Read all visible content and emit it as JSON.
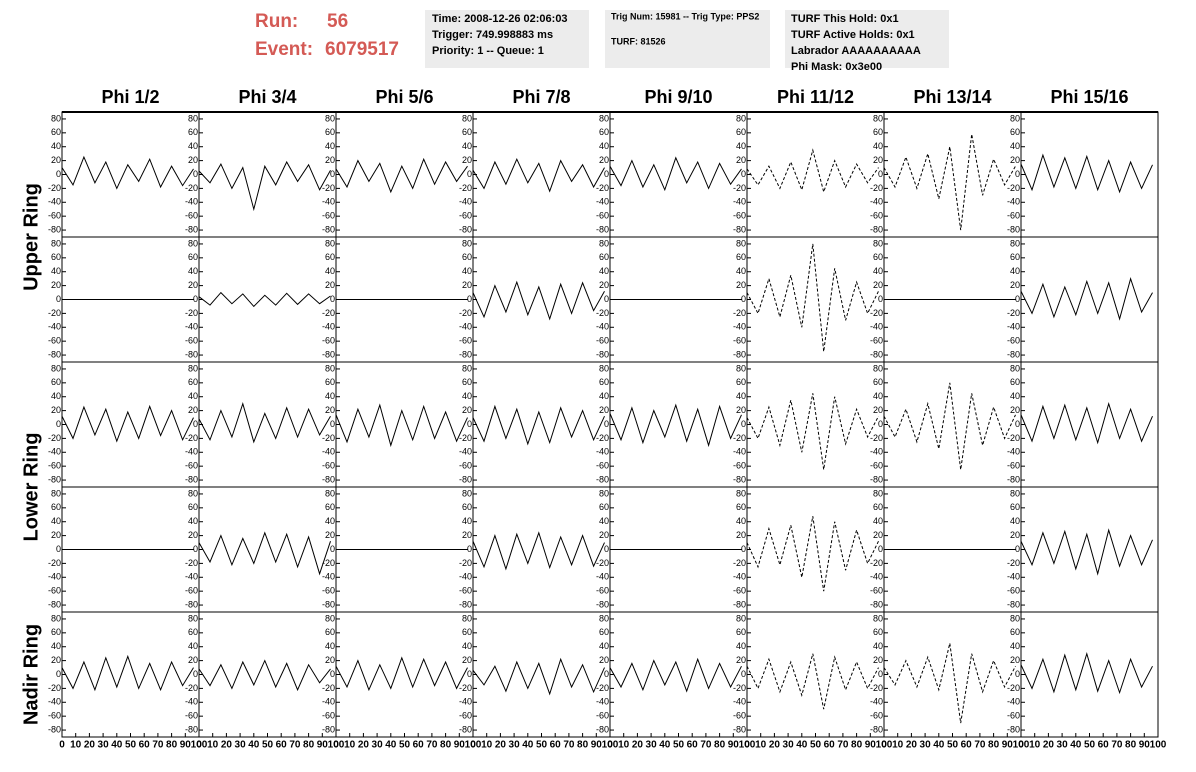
{
  "header": {
    "run_label": "Run:",
    "run": "56",
    "event_label": "Event:",
    "event": "6079517"
  },
  "info_boxes": [
    [
      "Time: 2008-12-26 02:06:03",
      "Trigger: 749.998883 ms",
      "Priority: 1 -- Queue: 1"
    ],
    [
      "Trig Num: 15981 -- Trig Type: PPS2",
      "TURF: 81526"
    ],
    [
      "TURF This Hold: 0x1",
      "TURF Active Holds: 0x1",
      "Labrador AAAAAAAAAA",
      "Phi Mask: 0x3e00"
    ]
  ],
  "chart_data": {
    "type": "line",
    "columns": [
      "Phi 1/2",
      "Phi 3/4",
      "Phi 5/6",
      "Phi 7/8",
      "Phi 9/10",
      "Phi 11/12",
      "Phi 13/14",
      "Phi 15/16"
    ],
    "x": [
      0,
      8,
      16,
      24,
      32,
      40,
      48,
      56,
      64,
      72,
      80,
      88,
      96
    ],
    "xlim": [
      0,
      100
    ],
    "xticks": [
      0,
      10,
      20,
      30,
      40,
      50,
      60,
      70,
      80,
      90,
      100
    ],
    "ylim": [
      -90,
      90
    ],
    "yticks": [
      -80,
      -60,
      -40,
      -20,
      0,
      20,
      40,
      60,
      80
    ],
    "color": "#000000",
    "rings": [
      {
        "label": "Upper Ring",
        "rows": [
          [
            {
              "style": "solid",
              "values": [
                10,
                -15,
                25,
                -12,
                18,
                -20,
                14,
                -10,
                22,
                -18,
                12,
                -16,
                8
              ]
            },
            {
              "style": "solid",
              "values": [
                5,
                -12,
                15,
                -20,
                10,
                -50,
                12,
                -15,
                18,
                -10,
                14,
                -22,
                6
              ]
            },
            {
              "style": "solid",
              "values": [
                8,
                -18,
                20,
                -10,
                16,
                -25,
                12,
                -20,
                22,
                -14,
                18,
                -10,
                12
              ]
            },
            {
              "style": "solid",
              "values": [
                6,
                -20,
                18,
                -14,
                22,
                -12,
                16,
                -24,
                20,
                -10,
                14,
                -18,
                10
              ]
            },
            {
              "style": "solid",
              "values": [
                12,
                -16,
                20,
                -18,
                14,
                -22,
                24,
                -12,
                18,
                -20,
                16,
                -14,
                8
              ]
            },
            {
              "style": "dashed",
              "values": [
                8,
                -15,
                12,
                -20,
                18,
                -22,
                35,
                -25,
                20,
                -18,
                15,
                -12,
                10
              ]
            },
            {
              "style": "dashed",
              "values": [
                10,
                -18,
                25,
                -20,
                30,
                -35,
                40,
                -80,
                58,
                -30,
                22,
                -15,
                12
              ]
            },
            {
              "style": "solid",
              "values": [
                15,
                -22,
                28,
                -18,
                24,
                -20,
                26,
                -22,
                20,
                -25,
                18,
                -20,
                14
              ]
            }
          ],
          [
            {
              "style": "solid",
              "values": [
                0,
                0,
                0,
                0,
                0,
                0,
                0,
                0,
                0,
                0,
                0,
                0,
                0
              ]
            },
            {
              "style": "solid",
              "values": [
                4,
                -8,
                10,
                -6,
                8,
                -10,
                6,
                -8,
                9,
                -7,
                8,
                -6,
                5
              ]
            },
            {
              "style": "solid",
              "values": [
                0,
                0,
                0,
                0,
                0,
                0,
                0,
                0,
                0,
                0,
                0,
                0,
                0
              ]
            },
            {
              "style": "solid",
              "values": [
                10,
                -25,
                20,
                -18,
                25,
                -22,
                18,
                -28,
                22,
                -20,
                24,
                -16,
                12
              ]
            },
            {
              "style": "solid",
              "values": [
                0,
                0,
                0,
                0,
                0,
                0,
                0,
                0,
                0,
                0,
                0,
                0,
                0
              ]
            },
            {
              "style": "dashed",
              "values": [
                10,
                -20,
                30,
                -25,
                35,
                -40,
                80,
                -75,
                45,
                -30,
                25,
                -20,
                12
              ]
            },
            {
              "style": "solid",
              "values": [
                0,
                0,
                0,
                0,
                0,
                0,
                0,
                0,
                0,
                0,
                0,
                0,
                0
              ]
            },
            {
              "style": "solid",
              "values": [
                12,
                -20,
                22,
                -25,
                18,
                -22,
                26,
                -20,
                24,
                -28,
                30,
                -18,
                10
              ]
            }
          ]
        ]
      },
      {
        "label": "Lower Ring",
        "rows": [
          [
            {
              "style": "solid",
              "values": [
                12,
                -20,
                25,
                -15,
                22,
                -24,
                18,
                -20,
                26,
                -16,
                20,
                -22,
                10
              ]
            },
            {
              "style": "solid",
              "values": [
                8,
                -22,
                20,
                -18,
                30,
                -25,
                16,
                -20,
                24,
                -18,
                22,
                -15,
                12
              ]
            },
            {
              "style": "solid",
              "values": [
                14,
                -25,
                22,
                -18,
                28,
                -30,
                20,
                -22,
                26,
                -20,
                18,
                -24,
                10
              ]
            },
            {
              "style": "solid",
              "values": [
                10,
                -24,
                26,
                -20,
                22,
                -28,
                18,
                -26,
                24,
                -18,
                20,
                -22,
                12
              ]
            },
            {
              "style": "solid",
              "values": [
                16,
                -22,
                24,
                -26,
                20,
                -18,
                28,
                -24,
                22,
                -30,
                26,
                -20,
                14
              ]
            },
            {
              "style": "dashed",
              "values": [
                10,
                -20,
                25,
                -30,
                35,
                -40,
                45,
                -65,
                40,
                -28,
                22,
                -18,
                12
              ]
            },
            {
              "style": "dashed",
              "values": [
                12,
                -18,
                22,
                -25,
                30,
                -35,
                60,
                -65,
                45,
                -30,
                25,
                -20,
                14
              ]
            },
            {
              "style": "solid",
              "values": [
                14,
                -24,
                26,
                -20,
                28,
                -22,
                24,
                -26,
                30,
                -20,
                22,
                -24,
                12
              ]
            }
          ],
          [
            {
              "style": "solid",
              "values": [
                0,
                0,
                0,
                0,
                0,
                0,
                0,
                0,
                0,
                0,
                0,
                0,
                0
              ]
            },
            {
              "style": "solid",
              "values": [
                10,
                -18,
                20,
                -22,
                16,
                -20,
                24,
                -18,
                22,
                -25,
                18,
                -35,
                12
              ]
            },
            {
              "style": "solid",
              "values": [
                0,
                0,
                0,
                0,
                0,
                0,
                0,
                0,
                0,
                0,
                0,
                0,
                0
              ]
            },
            {
              "style": "solid",
              "values": [
                12,
                -25,
                20,
                -28,
                22,
                -20,
                24,
                -26,
                18,
                -22,
                20,
                -24,
                10
              ]
            },
            {
              "style": "solid",
              "values": [
                0,
                0,
                0,
                0,
                0,
                0,
                0,
                0,
                0,
                0,
                0,
                0,
                0
              ]
            },
            {
              "style": "dashed",
              "values": [
                10,
                -25,
                30,
                -22,
                35,
                -40,
                48,
                -60,
                40,
                -30,
                28,
                -20,
                12
              ]
            },
            {
              "style": "solid",
              "values": [
                0,
                0,
                0,
                0,
                0,
                0,
                0,
                0,
                0,
                0,
                0,
                0,
                0
              ]
            },
            {
              "style": "solid",
              "values": [
                12,
                -22,
                24,
                -20,
                26,
                -28,
                22,
                -35,
                28,
                -24,
                20,
                -22,
                14
              ]
            }
          ]
        ]
      },
      {
        "label": "Nadir Ring",
        "rows": [
          [
            {
              "style": "solid",
              "values": [
                10,
                -20,
                18,
                -22,
                24,
                -18,
                26,
                -20,
                16,
                -22,
                18,
                -16,
                10
              ]
            },
            {
              "style": "solid",
              "values": [
                8,
                -16,
                14,
                -20,
                18,
                -15,
                20,
                -18,
                16,
                -22,
                14,
                -12,
                8
              ]
            },
            {
              "style": "solid",
              "values": [
                12,
                -18,
                20,
                -22,
                14,
                -20,
                24,
                -18,
                22,
                -16,
                18,
                -20,
                10
              ]
            },
            {
              "style": "solid",
              "values": [
                6,
                -15,
                12,
                -24,
                18,
                -20,
                16,
                -28,
                22,
                -18,
                14,
                -25,
                10
              ]
            },
            {
              "style": "solid",
              "values": [
                10,
                -18,
                16,
                -22,
                20,
                -15,
                18,
                -24,
                22,
                -20,
                16,
                -18,
                12
              ]
            },
            {
              "style": "dashed",
              "values": [
                12,
                -20,
                22,
                -25,
                18,
                -30,
                30,
                -50,
                25,
                -22,
                18,
                -20,
                10
              ]
            },
            {
              "style": "dashed",
              "values": [
                10,
                -15,
                20,
                -18,
                25,
                -22,
                45,
                -70,
                30,
                -25,
                20,
                -18,
                12
              ]
            },
            {
              "style": "solid",
              "values": [
                14,
                -20,
                22,
                -25,
                28,
                -22,
                30,
                -24,
                20,
                -26,
                22,
                -18,
                12
              ]
            }
          ]
        ]
      }
    ]
  }
}
